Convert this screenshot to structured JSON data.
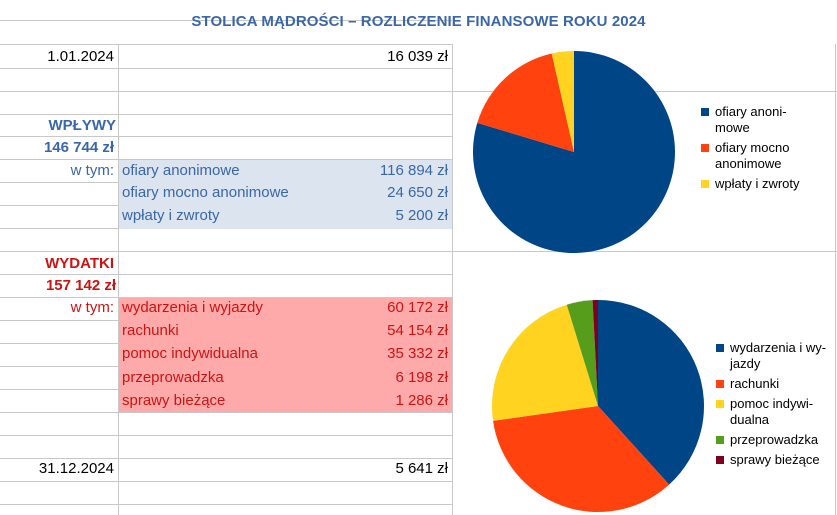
{
  "title": "STOLICA MĄDROŚCI – ROZLICZENIE FINANSOWE ROKU 2024",
  "opening": {
    "date": "1.01.2024",
    "amount": "16 039 zł"
  },
  "income": {
    "heading": "WPŁYWY",
    "total": "146 744 zł",
    "in_which": "w tym:",
    "items": [
      {
        "label": "ofiary anonimowe",
        "amount": "116 894 zł"
      },
      {
        "label": "ofiary mocno anonimowe",
        "amount": "24 650 zł"
      },
      {
        "label": "wpłaty i zwroty",
        "amount": "5 200 zł"
      }
    ]
  },
  "expenses": {
    "heading": "WYDATKI",
    "total": "157 142 zł",
    "in_which": "w tym:",
    "items": [
      {
        "label": "wydarzenia i wyjazdy",
        "amount": "60 172 zł"
      },
      {
        "label": "rachunki",
        "amount": "54 154 zł"
      },
      {
        "label": "pomoc indywidualna",
        "amount": "35 332 zł"
      },
      {
        "label": "przeprowadzka",
        "amount": "6 198 zł"
      },
      {
        "label": "sprawy bieżące",
        "amount": "1 286 zł"
      }
    ]
  },
  "closing": {
    "date": "31.12.2024",
    "amount": "5 641 zł"
  },
  "chart_data": [
    {
      "type": "pie",
      "categories": [
        "ofiary anonimowe",
        "ofiary mocno anonimowe",
        "wpłaty i zwroty"
      ],
      "legend_lines": [
        [
          "ofiary anoni-",
          "mowe"
        ],
        [
          "ofiary mocno",
          "anonimowe"
        ],
        [
          "wpłaty i zwroty"
        ]
      ],
      "values": [
        116894,
        24650,
        5200
      ],
      "colors": [
        "#004586",
        "#ff420e",
        "#ffd320"
      ],
      "legend": "right"
    },
    {
      "type": "pie",
      "categories": [
        "wydarzenia i wyjazdy",
        "rachunki",
        "pomoc indywidualna",
        "przeprowadzka",
        "sprawy bieżące"
      ],
      "legend_lines": [
        [
          "wydarzenia i wy-",
          "jazdy"
        ],
        [
          "rachunki"
        ],
        [
          "pomoc indywi-",
          "dualna"
        ],
        [
          "przeprowadzka"
        ],
        [
          "sprawy bieżące"
        ]
      ],
      "values": [
        60172,
        54154,
        35332,
        6198,
        1286
      ],
      "colors": [
        "#004586",
        "#ff420e",
        "#ffd320",
        "#579d1c",
        "#7e0021"
      ],
      "legend": "right"
    }
  ]
}
